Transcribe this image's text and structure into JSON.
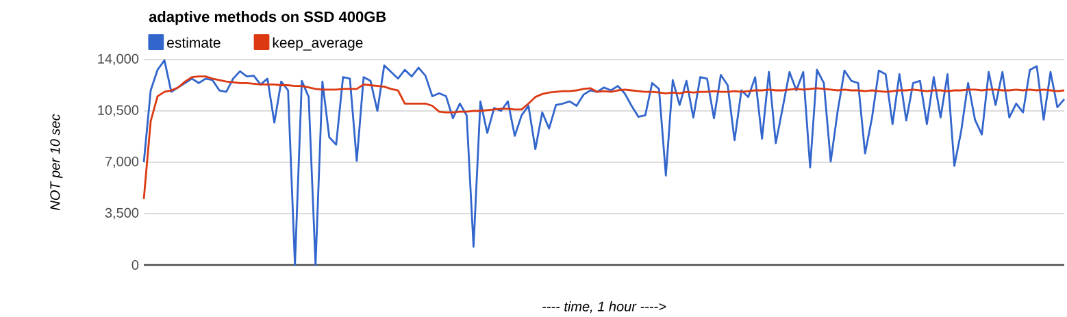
{
  "chart_data": {
    "type": "line",
    "title": "adaptive methods on SSD 400GB",
    "xlabel": "---- time, 1 hour ---->",
    "ylabel": "NOT per 10 sec",
    "categories": [
      null,
      null,
      null,
      null,
      null,
      null,
      null,
      null,
      null,
      null,
      null,
      null,
      null,
      null,
      null,
      null,
      null,
      null,
      null,
      null,
      null,
      null,
      null,
      null,
      null,
      null,
      null,
      null,
      null,
      null,
      null,
      null,
      null,
      null,
      null,
      null,
      null,
      null,
      null,
      null,
      null,
      null,
      null,
      null,
      null,
      null,
      null,
      null,
      null,
      null,
      null,
      null,
      null,
      null,
      null,
      null,
      null,
      null,
      null,
      null,
      null,
      null,
      null,
      null,
      null,
      null,
      null,
      null,
      null,
      null,
      null,
      null,
      null,
      null,
      null,
      null,
      null,
      null,
      null,
      null,
      null,
      null,
      null,
      null,
      null,
      null,
      null,
      null,
      null,
      null,
      null,
      null,
      null,
      null,
      null,
      null,
      null,
      null,
      null,
      null,
      null,
      null,
      null,
      null,
      null,
      null,
      null,
      null,
      null,
      null,
      null,
      null,
      null,
      null,
      null,
      null,
      null,
      null,
      null,
      null,
      null,
      null,
      null,
      null,
      null,
      null,
      null,
      null,
      null,
      null,
      null,
      null,
      null,
      null,
      null
    ],
    "series": [
      {
        "name": "estimate",
        "color": "#3366cc",
        "values": [
          7000,
          11900,
          13300,
          13950,
          11800,
          12100,
          12400,
          12700,
          12400,
          12700,
          12600,
          11900,
          11800,
          12700,
          13200,
          12850,
          12900,
          12300,
          12700,
          9700,
          12500,
          11900,
          0,
          12550,
          11450,
          0,
          12500,
          8700,
          8200,
          12800,
          12700,
          7100,
          12800,
          12550,
          10500,
          13600,
          13150,
          12700,
          13300,
          12850,
          13450,
          12900,
          11500,
          11700,
          11500,
          10000,
          11000,
          10200,
          1240,
          11150,
          9000,
          10700,
          10500,
          11150,
          8800,
          10200,
          10850,
          7900,
          10400,
          9300,
          10900,
          11000,
          11150,
          10850,
          11600,
          11900,
          11800,
          12100,
          11900,
          12200,
          11700,
          10850,
          10100,
          10200,
          12400,
          12000,
          6100,
          12600,
          10900,
          12550,
          10050,
          12800,
          12700,
          10000,
          12950,
          12250,
          8500,
          11900,
          11450,
          12800,
          8600,
          13150,
          8300,
          10700,
          13150,
          11900,
          13150,
          6650,
          13300,
          12400,
          7050,
          10450,
          13250,
          12550,
          12400,
          7600,
          10000,
          13250,
          13000,
          9600,
          13000,
          9850,
          12400,
          12550,
          9600,
          12800,
          10050,
          13000,
          6750,
          9150,
          12400,
          9900,
          8900,
          13150,
          10900,
          13150,
          10050,
          11000,
          10400,
          13300,
          13550,
          9900,
          13150,
          10750,
          11300
        ]
      },
      {
        "name": "keep_average",
        "color": "#dc3912",
        "values": [
          4500,
          9800,
          11500,
          11800,
          11900,
          12100,
          12500,
          12800,
          12850,
          12850,
          12700,
          12600,
          12500,
          12450,
          12400,
          12400,
          12350,
          12300,
          12300,
          12300,
          12250,
          12250,
          12200,
          12200,
          12100,
          12000,
          11950,
          11950,
          11950,
          12000,
          12000,
          12000,
          12300,
          12250,
          12200,
          12150,
          12000,
          11900,
          11000,
          11000,
          11000,
          11000,
          10850,
          10450,
          10400,
          10400,
          10450,
          10450,
          10500,
          10500,
          10550,
          10600,
          10650,
          10650,
          10600,
          10600,
          11000,
          11450,
          11650,
          11750,
          11800,
          11850,
          11850,
          11900,
          12000,
          12050,
          11800,
          11850,
          11800,
          11900,
          11950,
          11900,
          11850,
          11800,
          11800,
          11750,
          11700,
          11750,
          11700,
          11800,
          11750,
          11800,
          11800,
          11850,
          11800,
          11800,
          11850,
          11800,
          11850,
          11900,
          11900,
          11950,
          11900,
          11900,
          11950,
          12000,
          11950,
          12000,
          12050,
          12000,
          11950,
          11900,
          11950,
          11900,
          11900,
          11850,
          11900,
          11850,
          11800,
          11850,
          11900,
          11900,
          11950,
          11900,
          11850,
          11900,
          11900,
          11850,
          11900,
          11900,
          11950,
          11950,
          11900,
          11950,
          11950,
          11900,
          11900,
          11950,
          11900,
          11950,
          11900,
          11950,
          11900,
          11850,
          11900
        ]
      }
    ],
    "ylim": [
      0,
      14000
    ],
    "yticks": [
      {
        "value": 0,
        "label": "0"
      },
      {
        "value": 3500,
        "label": "3,500"
      },
      {
        "value": 7000,
        "label": "7,000"
      },
      {
        "value": 10500,
        "label": "10,500"
      },
      {
        "value": 14000,
        "label": "14,000"
      }
    ],
    "grid": "y",
    "legend": "top left",
    "tick_labels": "y"
  }
}
